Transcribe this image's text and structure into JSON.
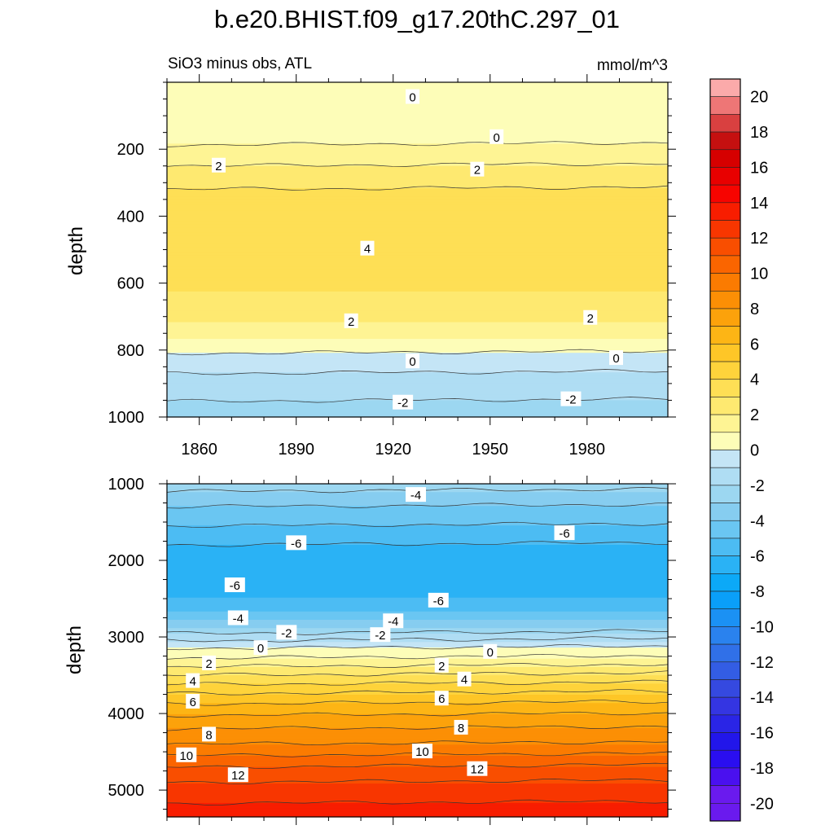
{
  "title": "b.e20.BHIST.f09_g17.20thC.297_01",
  "chart_data": {
    "type": "contour",
    "variable_label": "SiO3 minus obs, ATL",
    "units": "mmol/m^3",
    "xticks": [
      1860,
      1890,
      1920,
      1950,
      1980
    ],
    "xlim": [
      1850,
      2005
    ],
    "ylabel": "depth",
    "colorbar": {
      "levels": [
        -20,
        -19,
        -18,
        -17,
        -16,
        -15,
        -14,
        -13,
        -12,
        -11,
        -10,
        -9,
        -8,
        -7,
        -6,
        -5,
        -4,
        -3,
        -2,
        -1,
        0,
        1,
        2,
        3,
        4,
        5,
        6,
        7,
        8,
        9,
        10,
        11,
        12,
        13,
        14,
        15,
        16,
        17,
        18,
        19,
        20
      ],
      "labels": [
        "20",
        "18",
        "16",
        "14",
        "12",
        "10",
        "8",
        "6",
        "4",
        "2",
        "0",
        "-2",
        "-4",
        "-6",
        "-8",
        "-10",
        "-12",
        "-14",
        "-16",
        "-18",
        "-20"
      ]
    },
    "panels": [
      {
        "name": "upper",
        "ylim": [
          0,
          1000
        ],
        "yticks": [
          200,
          400,
          600,
          800,
          1000
        ],
        "profile": [
          {
            "depth": 0,
            "value": 0.5
          },
          {
            "depth": 150,
            "value": 0.5
          },
          {
            "depth": 175,
            "value": 0.8
          },
          {
            "depth": 200,
            "value": 1.2
          },
          {
            "depth": 250,
            "value": 2.0
          },
          {
            "depth": 300,
            "value": 2.8
          },
          {
            "depth": 350,
            "value": 3.3
          },
          {
            "depth": 400,
            "value": 3.6
          },
          {
            "depth": 500,
            "value": 3.8
          },
          {
            "depth": 600,
            "value": 3.2
          },
          {
            "depth": 650,
            "value": 2.8
          },
          {
            "depth": 700,
            "value": 2.2
          },
          {
            "depth": 750,
            "value": 1.4
          },
          {
            "depth": 790,
            "value": 0.6
          },
          {
            "depth": 820,
            "value": -0.3
          },
          {
            "depth": 870,
            "value": -1.0
          },
          {
            "depth": 930,
            "value": -1.8
          },
          {
            "depth": 1000,
            "value": -2.4
          }
        ],
        "contour_labels": [
          {
            "x": 1926,
            "depth": 45,
            "text": "0"
          },
          {
            "x": 1952,
            "depth": 165,
            "text": "0"
          },
          {
            "x": 1866,
            "depth": 250,
            "text": "2"
          },
          {
            "x": 1946,
            "depth": 262,
            "text": "2"
          },
          {
            "x": 1912,
            "depth": 498,
            "text": "4"
          },
          {
            "x": 1907,
            "depth": 715,
            "text": "2"
          },
          {
            "x": 1981,
            "depth": 705,
            "text": "2"
          },
          {
            "x": 1926,
            "depth": 835,
            "text": "0"
          },
          {
            "x": 1989,
            "depth": 825,
            "text": "0"
          },
          {
            "x": 1923,
            "depth": 958,
            "text": "-2"
          },
          {
            "x": 1975,
            "depth": 948,
            "text": "-2"
          }
        ]
      },
      {
        "name": "lower",
        "ylim": [
          1000,
          5350
        ],
        "yticks": [
          1000,
          2000,
          3000,
          4000,
          5000
        ],
        "profile": [
          {
            "depth": 1000,
            "value": -2.5
          },
          {
            "depth": 1300,
            "value": -4.0
          },
          {
            "depth": 1600,
            "value": -5.2
          },
          {
            "depth": 1900,
            "value": -6.4
          },
          {
            "depth": 2200,
            "value": -6.8
          },
          {
            "depth": 2450,
            "value": -6.3
          },
          {
            "depth": 2650,
            "value": -5.0
          },
          {
            "depth": 2850,
            "value": -3.2
          },
          {
            "depth": 3000,
            "value": -1.5
          },
          {
            "depth": 3150,
            "value": 0.0
          },
          {
            "depth": 3300,
            "value": 1.2
          },
          {
            "depth": 3500,
            "value": 3.0
          },
          {
            "depth": 3800,
            "value": 5.5
          },
          {
            "depth": 4100,
            "value": 7.5
          },
          {
            "depth": 4400,
            "value": 9.0
          },
          {
            "depth": 4700,
            "value": 11.0
          },
          {
            "depth": 5000,
            "value": 12.5
          },
          {
            "depth": 5350,
            "value": 13.5
          }
        ],
        "contour_labels": [
          {
            "x": 1927,
            "depth": 1150,
            "text": "-4"
          },
          {
            "x": 1890,
            "depth": 1780,
            "text": "-6"
          },
          {
            "x": 1973,
            "depth": 1650,
            "text": "-6"
          },
          {
            "x": 1871,
            "depth": 2330,
            "text": "-6"
          },
          {
            "x": 1934,
            "depth": 2530,
            "text": "-6"
          },
          {
            "x": 1872,
            "depth": 2760,
            "text": "-4"
          },
          {
            "x": 1920,
            "depth": 2800,
            "text": "-4"
          },
          {
            "x": 1887,
            "depth": 2950,
            "text": "-2"
          },
          {
            "x": 1916,
            "depth": 2980,
            "text": "-2"
          },
          {
            "x": 1879,
            "depth": 3150,
            "text": "0"
          },
          {
            "x": 1950,
            "depth": 3200,
            "text": "0"
          },
          {
            "x": 1863,
            "depth": 3350,
            "text": "2"
          },
          {
            "x": 1935,
            "depth": 3380,
            "text": "2"
          },
          {
            "x": 1858,
            "depth": 3580,
            "text": "4"
          },
          {
            "x": 1942,
            "depth": 3560,
            "text": "4"
          },
          {
            "x": 1858,
            "depth": 3850,
            "text": "6"
          },
          {
            "x": 1935,
            "depth": 3810,
            "text": "6"
          },
          {
            "x": 1863,
            "depth": 4280,
            "text": "8"
          },
          {
            "x": 1941,
            "depth": 4190,
            "text": "8"
          },
          {
            "x": 1856,
            "depth": 4550,
            "text": "10"
          },
          {
            "x": 1929,
            "depth": 4500,
            "text": "10"
          },
          {
            "x": 1872,
            "depth": 4810,
            "text": "12"
          },
          {
            "x": 1946,
            "depth": 4730,
            "text": "12"
          }
        ]
      }
    ]
  }
}
